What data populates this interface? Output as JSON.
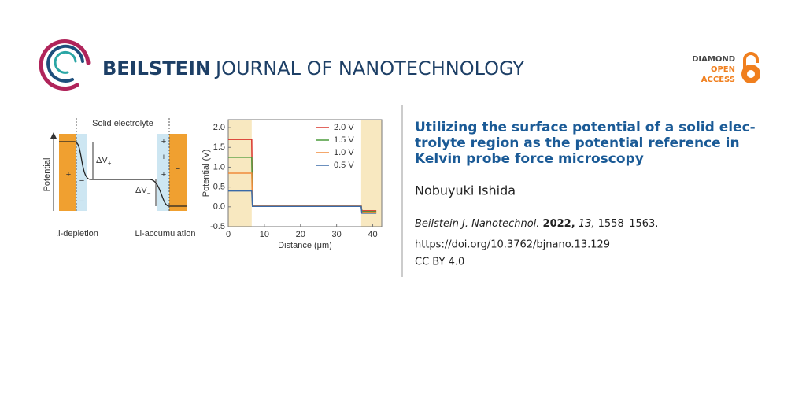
{
  "header": {
    "brand_bold": "BEILSTEIN",
    "brand_rest": "JOURNAL OF NANOTECHNOLOGY",
    "badge": [
      "DIAMOND",
      "OPEN",
      "ACCESS"
    ]
  },
  "figure": {
    "schematic": {
      "top_label": "Solid electrolyte",
      "y_label": "Potential",
      "plus": "+",
      "minus": "−",
      "dv": "ΔV",
      "dv_plus_sub": "+",
      "dv_minus_sub": "−",
      "left_label": ".i-depletion",
      "right_label": "Li-accumulation"
    },
    "chart": {
      "type": "line",
      "y_label": "Potential (V)",
      "x_label": "Distance (μm)",
      "x": [
        0,
        6.5,
        6.7,
        36.8,
        37,
        41
      ],
      "series": [
        {
          "name": "2.0 V",
          "color": "#d9342b",
          "values": [
            1.7,
            1.7,
            0.03,
            0.03,
            -0.1,
            -0.1
          ]
        },
        {
          "name": "1.5 V",
          "color": "#4a9a3a",
          "values": [
            1.25,
            1.25,
            0.02,
            0.02,
            -0.12,
            -0.12
          ]
        },
        {
          "name": "1.0 V",
          "color": "#f08a3a",
          "values": [
            0.85,
            0.85,
            0.02,
            0.02,
            -0.14,
            -0.14
          ]
        },
        {
          "name": "0.5 V",
          "color": "#3a6aa8",
          "values": [
            0.4,
            0.4,
            0.01,
            0.01,
            -0.16,
            -0.16
          ]
        }
      ],
      "shaded": [
        [
          0,
          6.5
        ],
        [
          36.8,
          42.5
        ]
      ],
      "xlim": [
        0,
        42.5
      ],
      "ylim": [
        -0.5,
        2.2
      ],
      "xticks": [
        0,
        10,
        20,
        30,
        40
      ],
      "yticks": [
        {
          "value": 2,
          "label": "2.0"
        },
        {
          "value": 1.5,
          "label": "1.5"
        },
        {
          "value": 1,
          "label": "1.0"
        },
        {
          "value": 0.5,
          "label": "0.5"
        },
        {
          "value": 0,
          "label": "0.0"
        },
        {
          "value": -0.5,
          "label": "-0.5"
        }
      ]
    }
  },
  "article": {
    "title": [
      "Utilizing the surface potential of a solid elec-",
      "trolyte region as the potential reference in",
      "Kelvin probe force microscopy"
    ],
    "author": "Nobuyuki Ishida",
    "journal": "Beilstein J. Nanotechnol.",
    "year": "2022,",
    "volume": "13,",
    "pages": "1558–1563.",
    "doi": "https://doi.org/10.3762/bjnano.13.129",
    "license": "CC BY 4.0"
  }
}
